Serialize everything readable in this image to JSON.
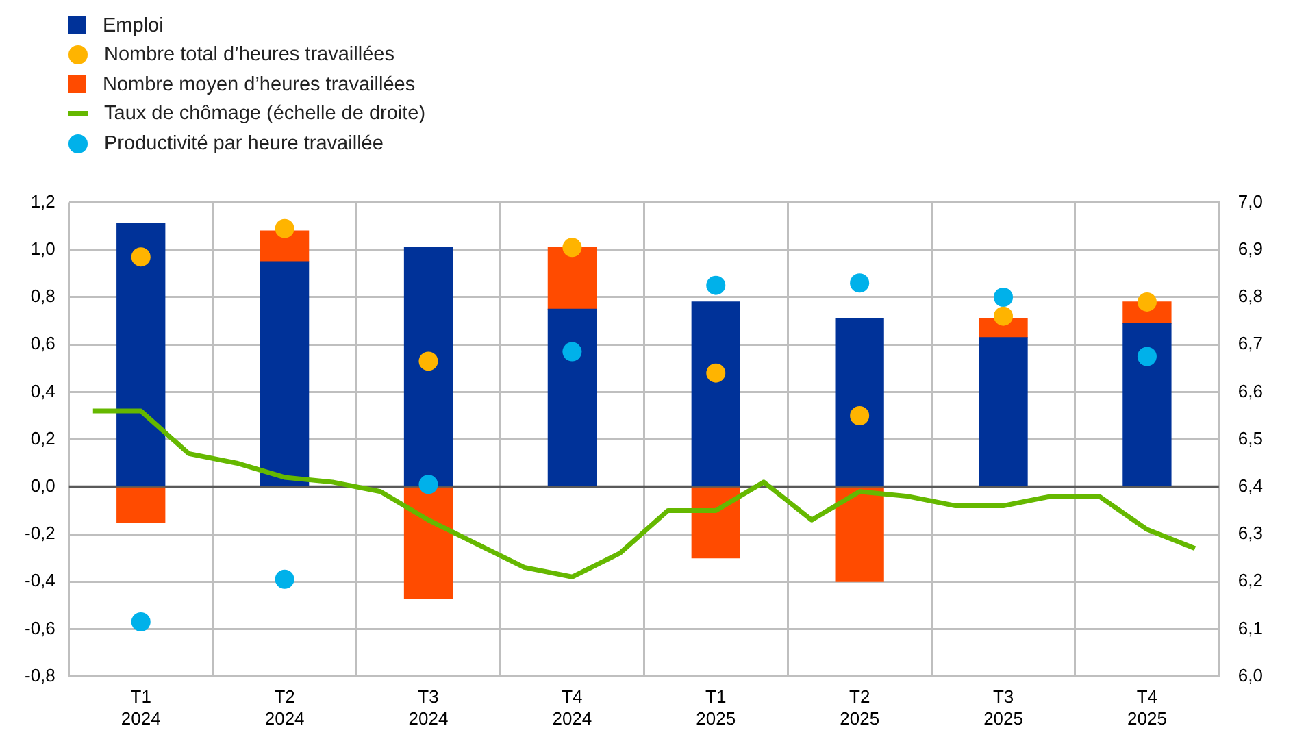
{
  "chart_data": {
    "type": "bar",
    "stacked": true,
    "categories": [
      null,
      "T1\n2024",
      null,
      null,
      "T2\n2024",
      null,
      null,
      "T3\n2024",
      null,
      null,
      "T4\n2024",
      null,
      null,
      "T1\n2025",
      null,
      null,
      "T2\n2025",
      null,
      null,
      "T3\n2025",
      null,
      null,
      "T4\n2025",
      null
    ],
    "series": [
      {
        "name": "Emploi",
        "color": "#003299",
        "values": [
          null,
          1.11,
          null,
          null,
          0.95,
          null,
          null,
          1.01,
          null,
          null,
          0.75,
          null,
          null,
          0.78,
          null,
          null,
          0.71,
          null,
          null,
          0.63,
          null,
          null,
          0.69,
          null
        ]
      },
      {
        "name": "Nombre total d’heures travaillées",
        "type": "scatter",
        "color": "#ffb400",
        "marker": "circle",
        "values": [
          null,
          0.97,
          null,
          null,
          1.09,
          null,
          null,
          0.53,
          null,
          null,
          1.01,
          null,
          null,
          0.48,
          null,
          null,
          0.3,
          null,
          null,
          0.72,
          null,
          null,
          0.78,
          null
        ]
      },
      {
        "name": "Nombre moyen d’heures travaillées",
        "color": "#ff4b00",
        "values": [
          null,
          -0.15,
          null,
          null,
          0.13,
          null,
          null,
          -0.47,
          null,
          null,
          0.26,
          null,
          null,
          -0.3,
          null,
          null,
          -0.4,
          null,
          null,
          0.08,
          null,
          null,
          0.09,
          null
        ]
      },
      {
        "name": "Taux de chômage (échelle de droite)",
        "type": "line",
        "axis": "y2",
        "color": "#65b800",
        "values": [
          6.56,
          6.56,
          6.47,
          6.45,
          6.42,
          6.41,
          6.39,
          6.33,
          6.28,
          6.23,
          6.21,
          6.26,
          6.35,
          6.35,
          6.41,
          6.33,
          6.39,
          6.38,
          6.36,
          6.36,
          6.38,
          6.38,
          6.31,
          6.27
        ]
      },
      {
        "name": "Productivité par heure travaillée",
        "type": "scatter",
        "color": "#00b1ea",
        "marker": "circle",
        "values": [
          null,
          -0.57,
          null,
          null,
          -0.39,
          null,
          null,
          0.01,
          null,
          null,
          0.57,
          null,
          null,
          0.85,
          null,
          null,
          0.86,
          null,
          null,
          0.8,
          null,
          null,
          0.55,
          null
        ]
      }
    ],
    "ylim": [
      -0.8,
      1.2
    ],
    "yticks": [
      {
        "value": -0.8,
        "label": "-0,8"
      },
      {
        "value": -0.6,
        "label": "-0,6"
      },
      {
        "value": -0.4,
        "label": "-0,4"
      },
      {
        "value": -0.2,
        "label": "-0,2"
      },
      {
        "value": 0,
        "label": "0,0"
      },
      {
        "value": 0.2,
        "label": "0,2"
      },
      {
        "value": 0.4,
        "label": "0,4"
      },
      {
        "value": 0.6,
        "label": "0,6"
      },
      {
        "value": 0.8,
        "label": "0,8"
      },
      {
        "value": 1.0,
        "label": "1,0"
      },
      {
        "value": 1.2,
        "label": "1,2"
      }
    ],
    "y2lim": [
      6.0,
      7.0
    ],
    "y2ticks": [
      {
        "value": 6.0,
        "label": "6,0"
      },
      {
        "value": 6.1,
        "label": "6,1"
      },
      {
        "value": 6.2,
        "label": "6,2"
      },
      {
        "value": 6.3,
        "label": "6,3"
      },
      {
        "value": 6.4,
        "label": "6,4"
      },
      {
        "value": 6.5,
        "label": "6,5"
      },
      {
        "value": 6.6,
        "label": "6,6"
      },
      {
        "value": 6.7,
        "label": "6,7"
      },
      {
        "value": 6.8,
        "label": "6,8"
      },
      {
        "value": 6.9,
        "label": "6,9"
      },
      {
        "value": 7.0,
        "label": "7,0"
      }
    ],
    "ref_lines": [
      {
        "axis": "y",
        "value": 0,
        "color": "#595959"
      }
    ],
    "grid": true,
    "legend": "top left"
  }
}
